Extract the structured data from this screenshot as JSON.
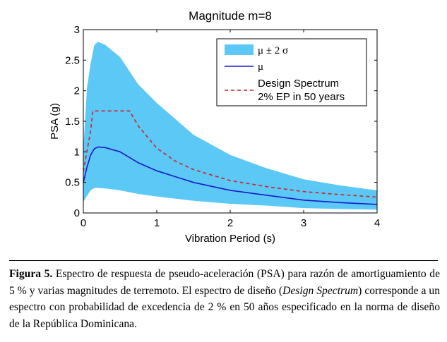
{
  "chart_data": {
    "type": "area",
    "title": "Magnitude m=8",
    "xlabel": "Vibration Period (s)",
    "ylabel": "PSA (g)",
    "xlim": [
      0,
      4
    ],
    "ylim": [
      0,
      3
    ],
    "xticks": [
      0,
      1,
      2,
      3,
      4
    ],
    "yticks": [
      0,
      0.5,
      1,
      1.5,
      2,
      2.5,
      3
    ],
    "ytick_labels": [
      "0",
      "0.5",
      "1",
      "1.5",
      "2",
      "2.5",
      "3"
    ],
    "grid": false,
    "legend_position": "top-right",
    "series": [
      {
        "name": "μ ± 2 σ",
        "kind": "band",
        "color": "#5bc8f5",
        "x": [
          0.0,
          0.05,
          0.1,
          0.15,
          0.2,
          0.3,
          0.5,
          0.75,
          1.0,
          1.5,
          2.0,
          2.5,
          3.0,
          3.5,
          4.0
        ],
        "upper": [
          1.05,
          2.05,
          2.45,
          2.75,
          2.8,
          2.75,
          2.55,
          2.1,
          1.8,
          1.28,
          0.95,
          0.73,
          0.55,
          0.45,
          0.37
        ],
        "lower": [
          0.18,
          0.28,
          0.37,
          0.41,
          0.41,
          0.4,
          0.37,
          0.31,
          0.27,
          0.2,
          0.15,
          0.12,
          0.08,
          0.065,
          0.055
        ]
      },
      {
        "name": "μ",
        "kind": "line",
        "color": "#1a1ac8",
        "x": [
          0.0,
          0.05,
          0.1,
          0.15,
          0.2,
          0.3,
          0.5,
          0.75,
          1.0,
          1.5,
          2.0,
          2.5,
          3.0,
          3.5,
          4.0
        ],
        "values": [
          0.5,
          0.75,
          0.95,
          1.05,
          1.08,
          1.07,
          1.0,
          0.82,
          0.69,
          0.5,
          0.37,
          0.29,
          0.21,
          0.17,
          0.14
        ]
      },
      {
        "name": "Design Spectrum\n2% EP in 50 years",
        "legend_lines": [
          "Design Spectrum",
          "2% EP in 50 years"
        ],
        "kind": "dashed-line",
        "color": "#d0202a",
        "x": [
          0.0,
          0.1,
          0.13,
          0.2,
          0.4,
          0.63,
          0.75,
          1.0,
          1.25,
          1.5,
          2.0,
          2.5,
          3.0,
          3.5,
          4.0
        ],
        "values": [
          0.68,
          1.35,
          1.67,
          1.67,
          1.67,
          1.67,
          1.42,
          1.06,
          0.85,
          0.71,
          0.53,
          0.43,
          0.35,
          0.3,
          0.26
        ]
      }
    ]
  },
  "caption": {
    "label": "Figura 5.",
    "text_1": " Espectro de respuesta de pseudo-aceleración (PSA) para razón de amortiguamiento de 5 % y varias magnitudes de terremoto. El espectro de diseño (",
    "italic": "Design Spectrum",
    "text_2": ") corresponde a un espectro con probabilidad de excedencia de 2 % en 50 años especificado en la norma de diseño de la República Dominicana."
  }
}
